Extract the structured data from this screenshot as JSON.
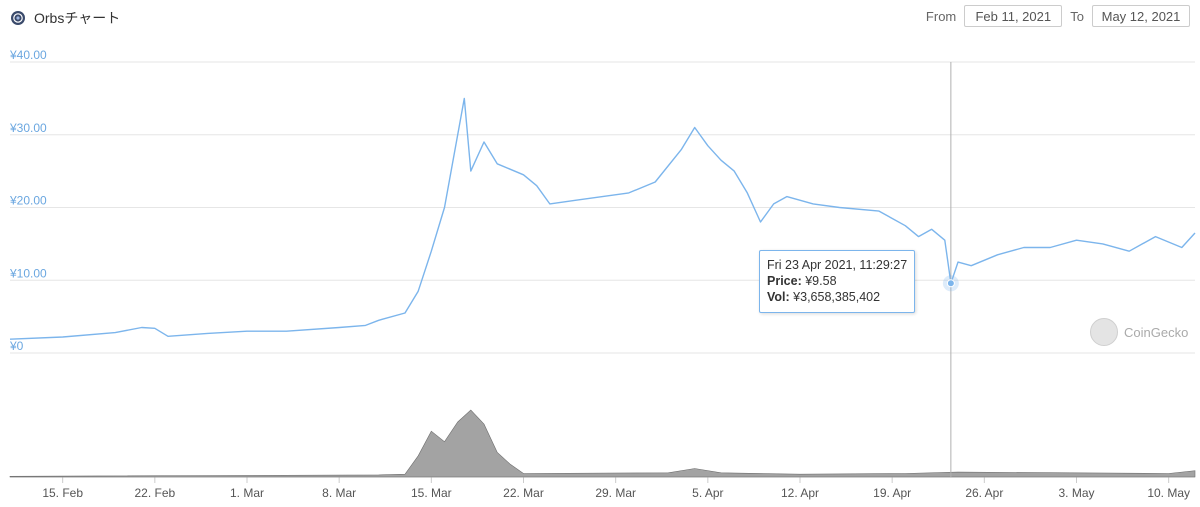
{
  "header": {
    "title": "Orbsチャート",
    "logo_icon": "orbs-logo-icon",
    "from_label": "From",
    "from_value": "Feb 11, 2021",
    "to_label": "To",
    "to_value": "May 12, 2021"
  },
  "tooltip": {
    "date": "Fri 23 Apr 2021, 11:29:27",
    "price_label": "Price:",
    "price_value": "¥9.58",
    "vol_label": "Vol:",
    "vol_value": "¥3,658,385,402"
  },
  "watermark": "CoinGecko",
  "colors": {
    "price_line": "#7cb5ec",
    "axis_label": "#6ba7e0",
    "volume": "#8c8c8c",
    "grid": "#e6e6e6"
  },
  "chart_data": {
    "type": "line",
    "x_axis": {
      "start": "2021-02-11",
      "end": "2021-05-12",
      "tick_labels": [
        "15. Feb",
        "22. Feb",
        "1. Mar",
        "8. Mar",
        "15. Mar",
        "22. Mar",
        "29. Mar",
        "5. Apr",
        "12. Apr",
        "19. Apr",
        "26. Apr",
        "3. May",
        "10. May"
      ],
      "tick_dates": [
        "2021-02-15",
        "2021-02-22",
        "2021-03-01",
        "2021-03-08",
        "2021-03-15",
        "2021-03-22",
        "2021-03-29",
        "2021-04-05",
        "2021-04-12",
        "2021-04-19",
        "2021-04-26",
        "2021-05-03",
        "2021-05-10"
      ]
    },
    "y_axis": {
      "ylim": [
        0,
        40
      ],
      "ticks": [
        0,
        10,
        20,
        30,
        40
      ],
      "tick_labels": [
        "¥0",
        "¥10.00",
        "¥20.00",
        "¥30.00",
        "¥40.00"
      ]
    },
    "grid": true,
    "series": [
      {
        "kind": "price",
        "points": [
          [
            "2021-02-11",
            1.9
          ],
          [
            "2021-02-15",
            2.2
          ],
          [
            "2021-02-19",
            2.8
          ],
          [
            "2021-02-21",
            3.5
          ],
          [
            "2021-02-22",
            3.4
          ],
          [
            "2021-02-23",
            2.3
          ],
          [
            "2021-02-26",
            2.7
          ],
          [
            "2021-03-01",
            3.0
          ],
          [
            "2021-03-04",
            3.0
          ],
          [
            "2021-03-08",
            3.5
          ],
          [
            "2021-03-10",
            3.8
          ],
          [
            "2021-03-11",
            4.5
          ],
          [
            "2021-03-13",
            5.5
          ],
          [
            "2021-03-14",
            8.5
          ],
          [
            "2021-03-15",
            14.0
          ],
          [
            "2021-03-16",
            20.0
          ],
          [
            "2021-03-17",
            30.0
          ],
          [
            "2021-03-17T12",
            35.0
          ],
          [
            "2021-03-18",
            25.0
          ],
          [
            "2021-03-19",
            29.0
          ],
          [
            "2021-03-20",
            26.0
          ],
          [
            "2021-03-22",
            24.5
          ],
          [
            "2021-03-23",
            23.0
          ],
          [
            "2021-03-24",
            20.5
          ],
          [
            "2021-03-26",
            21.0
          ],
          [
            "2021-03-28",
            21.5
          ],
          [
            "2021-03-30",
            22.0
          ],
          [
            "2021-04-01",
            23.5
          ],
          [
            "2021-04-03",
            28.0
          ],
          [
            "2021-04-04",
            31.0
          ],
          [
            "2021-04-05",
            28.5
          ],
          [
            "2021-04-06",
            26.5
          ],
          [
            "2021-04-07",
            25.0
          ],
          [
            "2021-04-08",
            22.0
          ],
          [
            "2021-04-09",
            18.0
          ],
          [
            "2021-04-10",
            20.5
          ],
          [
            "2021-04-11",
            21.5
          ],
          [
            "2021-04-13",
            20.5
          ],
          [
            "2021-04-15",
            20.0
          ],
          [
            "2021-04-18",
            19.5
          ],
          [
            "2021-04-20",
            17.5
          ],
          [
            "2021-04-21",
            16.0
          ],
          [
            "2021-04-22",
            17.0
          ],
          [
            "2021-04-23",
            15.5
          ],
          [
            "2021-04-23T11",
            9.58
          ],
          [
            "2021-04-24",
            12.5
          ],
          [
            "2021-04-25",
            12.0
          ],
          [
            "2021-04-27",
            13.5
          ],
          [
            "2021-04-29",
            14.5
          ],
          [
            "2021-05-01",
            14.5
          ],
          [
            "2021-05-03",
            15.5
          ],
          [
            "2021-05-05",
            15.0
          ],
          [
            "2021-05-07",
            14.0
          ],
          [
            "2021-05-09",
            16.0
          ],
          [
            "2021-05-11",
            14.5
          ],
          [
            "2021-05-12",
            16.5
          ]
        ]
      },
      {
        "kind": "volume",
        "points": [
          [
            "2021-02-11",
            0.1
          ],
          [
            "2021-03-11",
            0.3
          ],
          [
            "2021-03-13",
            0.4
          ],
          [
            "2021-03-14",
            3.0
          ],
          [
            "2021-03-15",
            6.5
          ],
          [
            "2021-03-16",
            5.0
          ],
          [
            "2021-03-17",
            7.8
          ],
          [
            "2021-03-18",
            9.5
          ],
          [
            "2021-03-19",
            7.5
          ],
          [
            "2021-03-20",
            3.5
          ],
          [
            "2021-03-21",
            1.8
          ],
          [
            "2021-03-22",
            0.5
          ],
          [
            "2021-04-02",
            0.6
          ],
          [
            "2021-04-04",
            1.2
          ],
          [
            "2021-04-06",
            0.6
          ],
          [
            "2021-04-12",
            0.4
          ],
          [
            "2021-04-20",
            0.5
          ],
          [
            "2021-04-24",
            0.7
          ],
          [
            "2021-05-10",
            0.5
          ],
          [
            "2021-05-12",
            0.9
          ]
        ]
      }
    ],
    "crosshair_date": "2021-04-23T11",
    "watermark": "CoinGecko"
  }
}
